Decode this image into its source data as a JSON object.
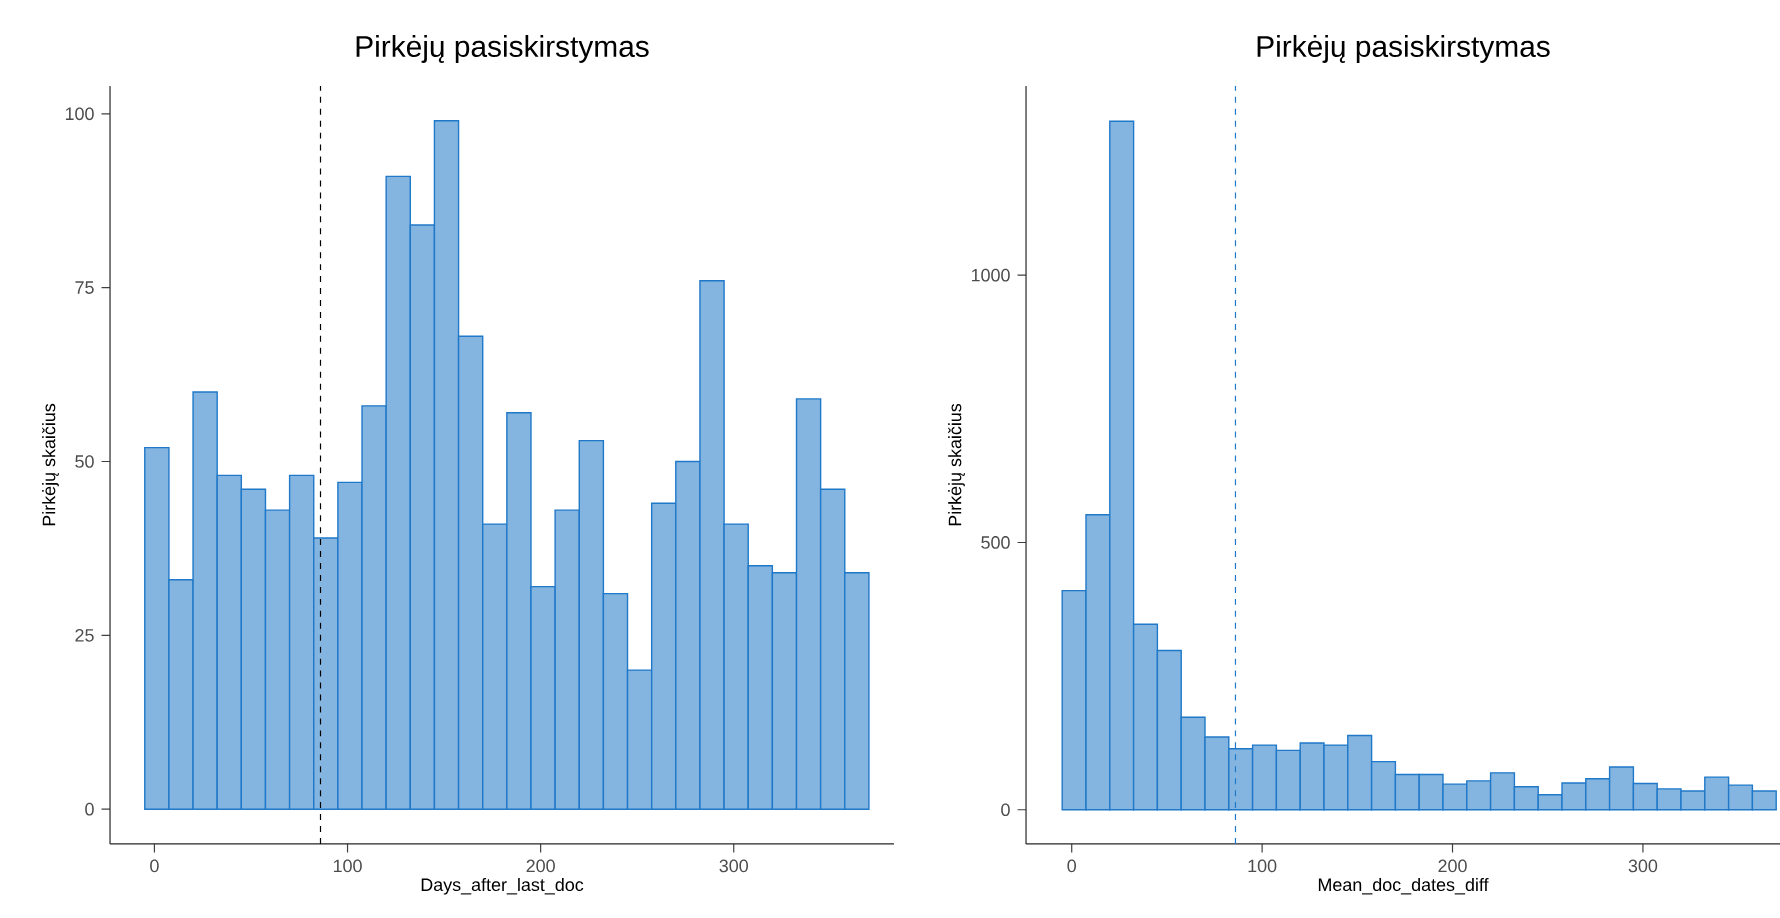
{
  "chart_data": [
    {
      "type": "histogram",
      "title": "Pirkėjų pasiskirstymas",
      "xlabel": "Days_after_last_doc",
      "ylabel": "Pirkėjų skaičius",
      "bins": [
        -5,
        7.5,
        20,
        32.5,
        45,
        57.5,
        70,
        82.5,
        95,
        107.5,
        120,
        132.5,
        145,
        157.5,
        170,
        182.5,
        195,
        207.5,
        220,
        232.5,
        245,
        257.5,
        270,
        282.5,
        295,
        307.5,
        320,
        332.5,
        345,
        357.5,
        370
      ],
      "values": [
        52,
        33,
        60,
        48,
        46,
        43,
        48,
        39,
        47,
        58,
        91,
        84,
        99,
        68,
        41,
        57,
        32,
        43,
        53,
        31,
        20,
        44,
        50,
        76,
        41,
        35,
        34,
        59,
        46,
        34
      ],
      "color": "#1f78c8",
      "xlim": [
        -23,
        383
      ],
      "ylim": [
        -5,
        104
      ],
      "xticks": [
        0,
        100,
        200,
        300
      ],
      "yticks": [
        0,
        25,
        50,
        75,
        100
      ],
      "grid": false,
      "ref_lines": [
        {
          "axis": "x",
          "value": 86,
          "color": "#000000",
          "line_style": "dashed"
        }
      ]
    },
    {
      "type": "histogram",
      "title": "Pirkėjų pasiskirstymas",
      "xlabel": "Mean_doc_dates_diff",
      "ylabel": "Pirkėjų skaičius",
      "bins": [
        -5,
        7.5,
        20,
        32.5,
        45,
        57.5,
        70,
        82.5,
        95,
        107.5,
        120,
        132.5,
        145,
        157.5,
        170,
        182.5,
        195,
        207.5,
        220,
        232.5,
        245,
        257.5,
        270,
        282.5,
        295,
        307.5,
        320,
        332.5,
        345,
        357.5,
        370
      ],
      "values": [
        410,
        552,
        1288,
        347,
        298,
        173,
        136,
        114,
        121,
        111,
        125,
        121,
        139,
        90,
        66,
        66,
        48,
        54,
        69,
        43,
        28,
        50,
        58,
        80,
        49,
        39,
        35,
        61,
        46,
        35
      ],
      "color": "#1f78c8",
      "xlim": [
        -24,
        372
      ],
      "ylim": [
        -64,
        1354
      ],
      "xticks": [
        0,
        100,
        200,
        300
      ],
      "yticks": [
        0,
        500,
        1000
      ],
      "grid": false,
      "ref_lines": [
        {
          "axis": "x",
          "value": 86,
          "color": "#1f78c8",
          "line_style": "dashed"
        }
      ]
    }
  ]
}
